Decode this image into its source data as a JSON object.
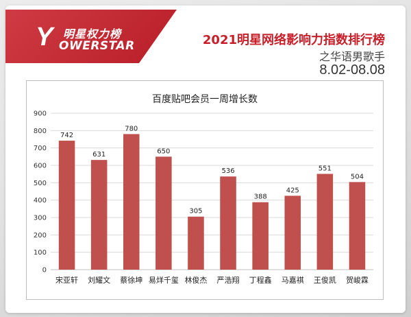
{
  "header": {
    "logo_cn": "明星权力榜",
    "logo_mark": "Y",
    "logo_en": "OWERSTAR",
    "title": "2021明星网络影响力指数排行榜",
    "subtitle": "之华语男歌手",
    "date_range": "8.02-08.08"
  },
  "colors": {
    "brand_red": "#c8202a",
    "bar": "#c0504d",
    "grid": "#d9d9d9"
  },
  "chart_data": {
    "type": "bar",
    "title": "百度贴吧会员一周增长数",
    "categories": [
      "宋亚轩",
      "刘耀文",
      "蔡徐坤",
      "易烊千玺",
      "林俊杰",
      "严浩翔",
      "丁程鑫",
      "马嘉祺",
      "王俊凯",
      "贺峻霖"
    ],
    "values": [
      742,
      631,
      780,
      650,
      305,
      536,
      388,
      425,
      551,
      504
    ],
    "ylim": [
      0,
      900
    ],
    "yticks": [
      0,
      100,
      200,
      300,
      400,
      500,
      600,
      700,
      800,
      900
    ],
    "grid": true,
    "data_labels": true
  }
}
